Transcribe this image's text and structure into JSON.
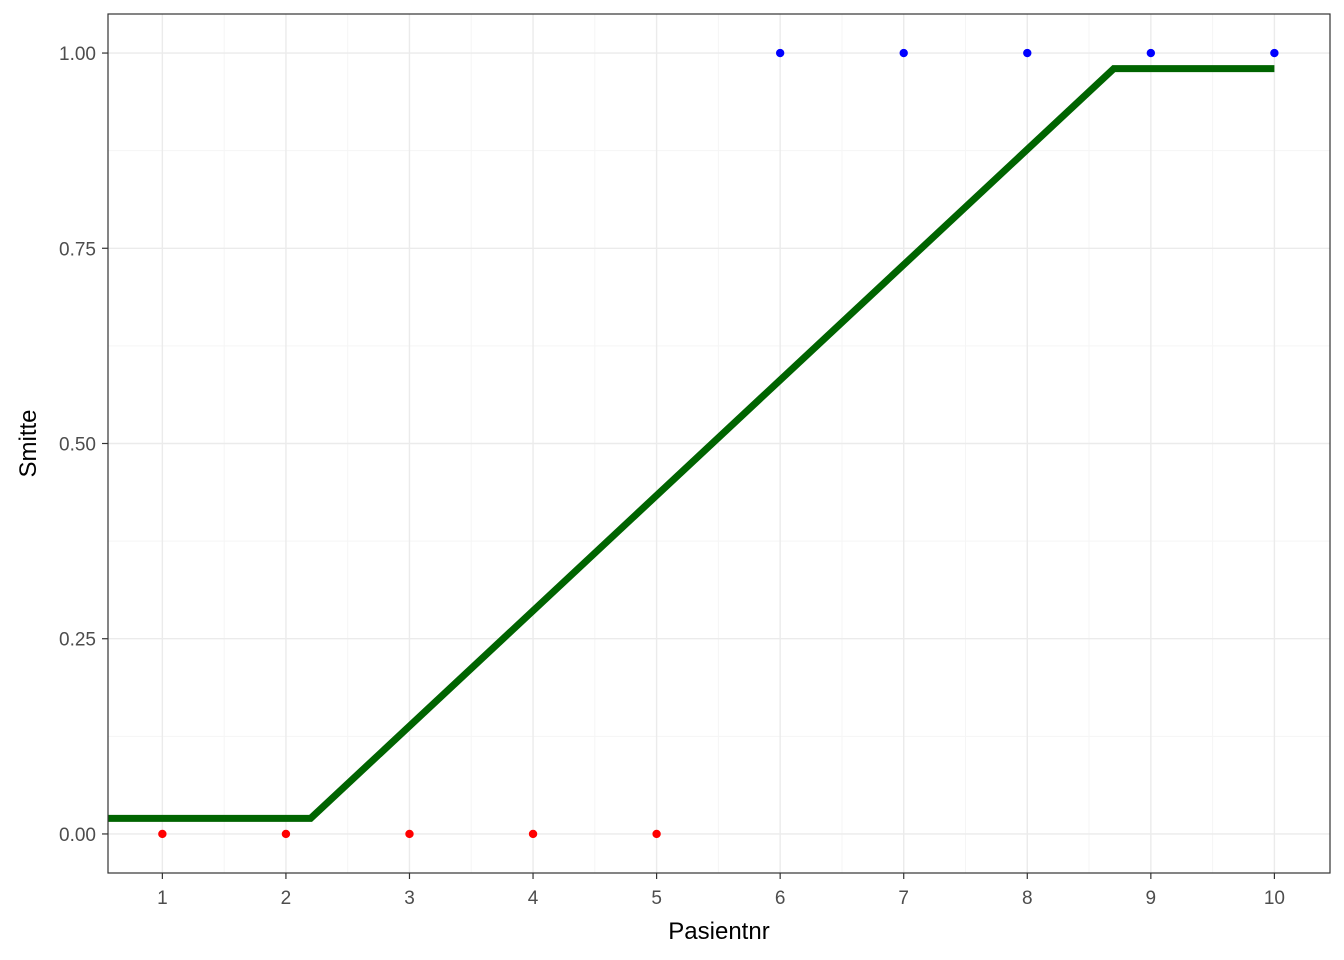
{
  "chart_data": {
    "type": "scatter",
    "xlabel": "Pasientnr",
    "ylabel": "Smitte",
    "xlim": [
      0.56,
      10.45
    ],
    "ylim": [
      -0.05,
      1.05
    ],
    "x_ticks": [
      1,
      2,
      3,
      4,
      5,
      6,
      7,
      8,
      9,
      10
    ],
    "x_tick_labels": [
      "1",
      "2",
      "3",
      "4",
      "5",
      "6",
      "7",
      "8",
      "9",
      "10"
    ],
    "y_ticks": [
      0,
      0.25,
      0.5,
      0.75,
      1
    ],
    "y_tick_labels": [
      "0.00",
      "0.25",
      "0.50",
      "0.75",
      "1.00"
    ],
    "grid": true,
    "legend": "none",
    "points": [
      {
        "x": 1,
        "y": 0,
        "color": "#ff0000"
      },
      {
        "x": 2,
        "y": 0,
        "color": "#ff0000"
      },
      {
        "x": 3,
        "y": 0,
        "color": "#ff0000"
      },
      {
        "x": 4,
        "y": 0,
        "color": "#ff0000"
      },
      {
        "x": 5,
        "y": 0,
        "color": "#ff0000"
      },
      {
        "x": 6,
        "y": 1,
        "color": "#0000ff"
      },
      {
        "x": 7,
        "y": 1,
        "color": "#0000ff"
      },
      {
        "x": 8,
        "y": 1,
        "color": "#0000ff"
      },
      {
        "x": 9,
        "y": 1,
        "color": "#0000ff"
      },
      {
        "x": 10,
        "y": 1,
        "color": "#0000ff"
      }
    ],
    "line": {
      "color": "#006400",
      "points": [
        {
          "x": 0.56,
          "y": 0.02
        },
        {
          "x": 2.2,
          "y": 0.02
        },
        {
          "x": 8.7,
          "y": 0.98
        },
        {
          "x": 10.0,
          "y": 0.98
        }
      ]
    },
    "colors": {
      "panel_border": "#333333",
      "grid_major": "#ebebeb",
      "grid_minor": "#f5f5f5",
      "tick_mark": "#333333"
    }
  }
}
